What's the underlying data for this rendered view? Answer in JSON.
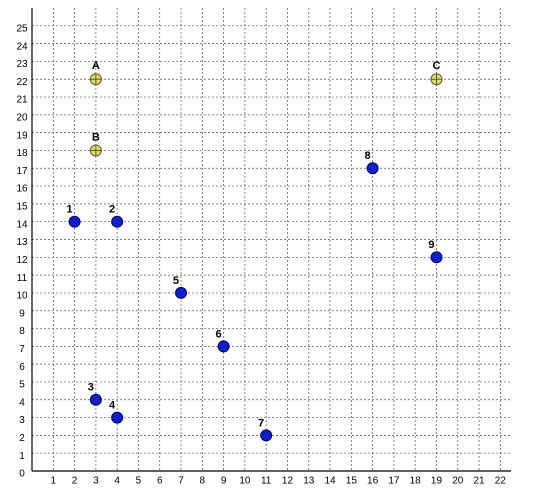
{
  "chart_data": {
    "type": "scatter",
    "xlim": [
      0,
      22.5
    ],
    "ylim": [
      0,
      26
    ],
    "xticks": [
      1,
      2,
      3,
      4,
      5,
      6,
      7,
      8,
      9,
      10,
      11,
      12,
      13,
      14,
      15,
      16,
      17,
      18,
      19,
      20,
      21,
      22
    ],
    "yticks": [
      0,
      1,
      2,
      3,
      4,
      5,
      6,
      7,
      8,
      9,
      10,
      11,
      12,
      13,
      14,
      15,
      16,
      17,
      18,
      19,
      20,
      21,
      22,
      23,
      24,
      25
    ],
    "grid": true,
    "series": [
      {
        "color": "#0a1fd0",
        "marker": "dot",
        "point_labels": [
          "1",
          "2",
          "3",
          "4",
          "5",
          "6",
          "7",
          "8",
          "9"
        ],
        "x": [
          2,
          4,
          3,
          4,
          7,
          9,
          11,
          16,
          19
        ],
        "values": [
          14,
          14,
          4,
          3,
          10,
          7,
          2,
          17,
          12
        ]
      },
      {
        "color": "#e8e040",
        "marker": "cross",
        "point_labels": [
          "A",
          "B",
          "C"
        ],
        "x": [
          3,
          3,
          19
        ],
        "values": [
          22,
          18,
          22
        ]
      }
    ]
  }
}
